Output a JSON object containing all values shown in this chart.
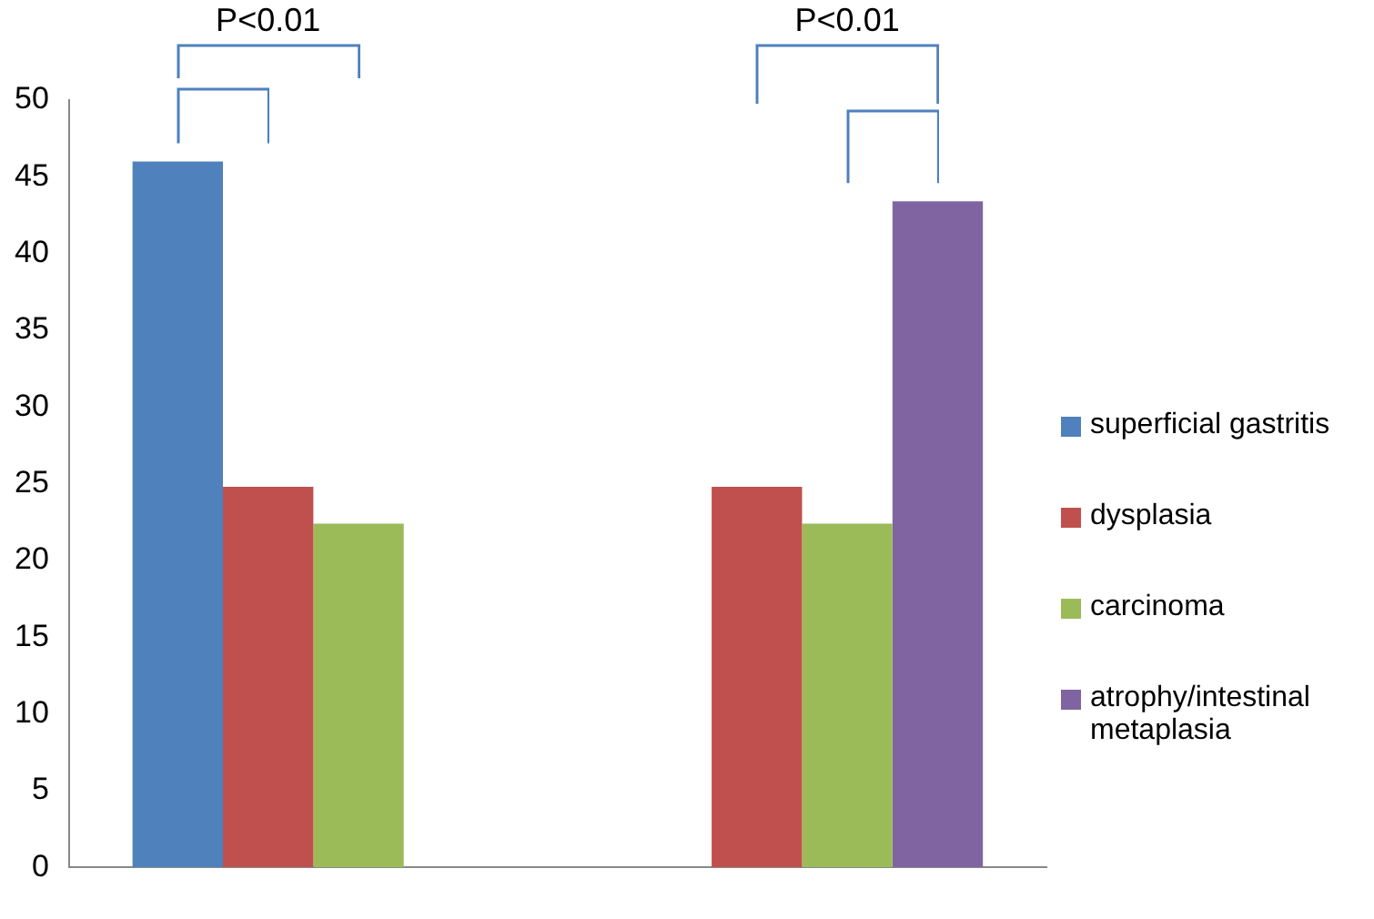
{
  "chart_data": {
    "type": "bar",
    "categories": [
      null,
      null
    ],
    "series": [
      {
        "name": "superficial gastritis",
        "color": "#4f81bd",
        "values": [
          46,
          null
        ]
      },
      {
        "name": "dysplasia",
        "color": "#c0504d",
        "values": [
          24.8,
          24.8
        ]
      },
      {
        "name": "carcinoma",
        "color": "#9bbb59",
        "values": [
          22.4,
          22.4
        ]
      },
      {
        "name": "atrophy/intestinal metaplasia",
        "color": "#8064a2",
        "values": [
          null,
          43.4
        ]
      }
    ],
    "ylim": [
      0,
      50
    ],
    "yticks": [
      0,
      5,
      10,
      15,
      20,
      25,
      30,
      35,
      40,
      45,
      50
    ],
    "grid": false,
    "legend": "right",
    "annotations": [
      "P<0.01",
      "P<0.01"
    ]
  }
}
